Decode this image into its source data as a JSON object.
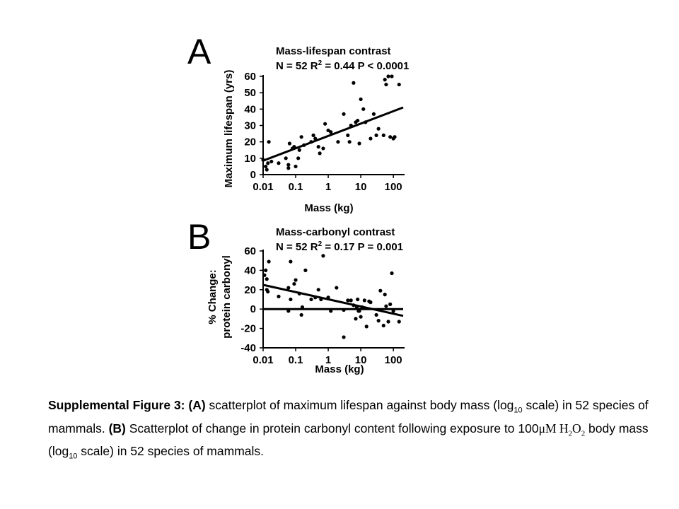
{
  "panels": {
    "a": {
      "letter": "A",
      "title_line1": "Mass-lifespan contrast",
      "title_n": "N = 52 R",
      "title_exp": "2",
      "title_rest": " =  0.44 P < 0.0001"
    },
    "b": {
      "letter": "B",
      "title_line1": "Mass-carbonyl contrast",
      "title_n": "N = 52 R",
      "title_exp": "2",
      "title_rest": " =  0.17 P = 0.001"
    }
  },
  "caption": {
    "lead": "Supplemental Figure 3: (A)",
    "text1": " scatterplot of maximum lifespan against body mass (log",
    "sub1": "10",
    "text2": " scale) in 52 species of mammals.  ",
    "b_label": "(B)",
    "text3": " Scatterplot of change in protein carbonyl content following exposure to 100",
    "unit": "μM H",
    "h2": "2",
    "o": "O",
    "o2": "2",
    "text4": " body mass (log",
    "sub2": "10",
    "text5": " scale) in 52 species of mammals."
  },
  "chart_data": [
    {
      "type": "scatter",
      "x_scale": "log10",
      "xlabel": "Mass (kg)",
      "ylabel": "Maximum lifespan (yrs)",
      "xlim": [
        0.01,
        200
      ],
      "ylim": [
        0,
        60
      ],
      "x_ticks": [
        0.01,
        0.1,
        1,
        10,
        100
      ],
      "x_tick_labels": [
        "0.01",
        "0.1",
        "1",
        "10",
        "100"
      ],
      "y_ticks": [
        0,
        10,
        20,
        30,
        40,
        50,
        60
      ],
      "y_tick_labels": [
        "0",
        "10",
        "20",
        "30",
        "40",
        "50",
        "60"
      ],
      "grid": false,
      "trendline": {
        "x": [
          0.01,
          200
        ],
        "y": [
          8.5,
          41
        ]
      },
      "points": [
        {
          "x": 0.01,
          "y": 9
        },
        {
          "x": 0.012,
          "y": 5
        },
        {
          "x": 0.013,
          "y": 3
        },
        {
          "x": 0.014,
          "y": 7
        },
        {
          "x": 0.015,
          "y": 20
        },
        {
          "x": 0.018,
          "y": 8
        },
        {
          "x": 0.03,
          "y": 7
        },
        {
          "x": 0.05,
          "y": 10
        },
        {
          "x": 0.06,
          "y": 6
        },
        {
          "x": 0.06,
          "y": 4
        },
        {
          "x": 0.065,
          "y": 19
        },
        {
          "x": 0.08,
          "y": 16
        },
        {
          "x": 0.09,
          "y": 17
        },
        {
          "x": 0.1,
          "y": 5
        },
        {
          "x": 0.12,
          "y": 10
        },
        {
          "x": 0.13,
          "y": 15
        },
        {
          "x": 0.15,
          "y": 23
        },
        {
          "x": 0.18,
          "y": 18
        },
        {
          "x": 0.3,
          "y": 20
        },
        {
          "x": 0.35,
          "y": 24
        },
        {
          "x": 0.4,
          "y": 22
        },
        {
          "x": 0.5,
          "y": 17
        },
        {
          "x": 0.55,
          "y": 13
        },
        {
          "x": 0.7,
          "y": 16
        },
        {
          "x": 0.8,
          "y": 31
        },
        {
          "x": 1.0,
          "y": 27
        },
        {
          "x": 1.2,
          "y": 26
        },
        {
          "x": 2.0,
          "y": 20
        },
        {
          "x": 3.0,
          "y": 37
        },
        {
          "x": 4.0,
          "y": 24
        },
        {
          "x": 4.5,
          "y": 20
        },
        {
          "x": 5.0,
          "y": 30
        },
        {
          "x": 6.0,
          "y": 56
        },
        {
          "x": 7.0,
          "y": 32
        },
        {
          "x": 8.0,
          "y": 33
        },
        {
          "x": 9.0,
          "y": 19
        },
        {
          "x": 10,
          "y": 46
        },
        {
          "x": 12,
          "y": 40
        },
        {
          "x": 14,
          "y": 32
        },
        {
          "x": 20,
          "y": 22
        },
        {
          "x": 25,
          "y": 37
        },
        {
          "x": 30,
          "y": 24
        },
        {
          "x": 35,
          "y": 28
        },
        {
          "x": 50,
          "y": 24
        },
        {
          "x": 55,
          "y": 58
        },
        {
          "x": 60,
          "y": 55
        },
        {
          "x": 70,
          "y": 60
        },
        {
          "x": 80,
          "y": 23
        },
        {
          "x": 90,
          "y": 60
        },
        {
          "x": 100,
          "y": 22
        },
        {
          "x": 110,
          "y": 23
        },
        {
          "x": 150,
          "y": 55
        }
      ]
    },
    {
      "type": "scatter",
      "x_scale": "log10",
      "xlabel": "Mass (kg)",
      "ylabel_line1": "% Change:",
      "ylabel_line2": "protein carbonyl",
      "xlim": [
        0.01,
        200
      ],
      "ylim": [
        -40,
        60
      ],
      "x_ticks": [
        0.01,
        0.1,
        1,
        10,
        100
      ],
      "x_tick_labels": [
        "0.01",
        "0.1",
        "1",
        "10",
        "100"
      ],
      "y_ticks": [
        -40,
        -20,
        0,
        20,
        40,
        60
      ],
      "y_tick_labels": [
        "-40",
        "-20",
        "0",
        "20",
        "40",
        "60"
      ],
      "grid": false,
      "zero_line": true,
      "trendline": {
        "x": [
          0.01,
          200
        ],
        "y": [
          25,
          -7
        ]
      },
      "points": [
        {
          "x": 0.011,
          "y": 35
        },
        {
          "x": 0.012,
          "y": 40
        },
        {
          "x": 0.013,
          "y": 31
        },
        {
          "x": 0.013,
          "y": 20
        },
        {
          "x": 0.014,
          "y": 18
        },
        {
          "x": 0.015,
          "y": 49
        },
        {
          "x": 0.03,
          "y": 13
        },
        {
          "x": 0.06,
          "y": 22
        },
        {
          "x": 0.06,
          "y": -2
        },
        {
          "x": 0.07,
          "y": 49
        },
        {
          "x": 0.07,
          "y": 10
        },
        {
          "x": 0.09,
          "y": 26
        },
        {
          "x": 0.1,
          "y": 30
        },
        {
          "x": 0.13,
          "y": 16
        },
        {
          "x": 0.15,
          "y": -6
        },
        {
          "x": 0.16,
          "y": 2
        },
        {
          "x": 0.2,
          "y": 40
        },
        {
          "x": 0.3,
          "y": 10
        },
        {
          "x": 0.4,
          "y": 12
        },
        {
          "x": 0.5,
          "y": 20
        },
        {
          "x": 0.6,
          "y": 10
        },
        {
          "x": 0.7,
          "y": 55
        },
        {
          "x": 1.0,
          "y": 12
        },
        {
          "x": 1.2,
          "y": -2
        },
        {
          "x": 1.8,
          "y": 22
        },
        {
          "x": 3.0,
          "y": -29
        },
        {
          "x": 3.0,
          "y": -1
        },
        {
          "x": 4.0,
          "y": 9
        },
        {
          "x": 5.0,
          "y": 9
        },
        {
          "x": 6.0,
          "y": 4
        },
        {
          "x": 7.0,
          "y": -10
        },
        {
          "x": 7.5,
          "y": 2
        },
        {
          "x": 8.0,
          "y": 10
        },
        {
          "x": 8.5,
          "y": -2
        },
        {
          "x": 9.0,
          "y": -2
        },
        {
          "x": 10,
          "y": -8
        },
        {
          "x": 11,
          "y": 2
        },
        {
          "x": 13,
          "y": 9
        },
        {
          "x": 15,
          "y": -18
        },
        {
          "x": 18,
          "y": 8
        },
        {
          "x": 20,
          "y": 7
        },
        {
          "x": 30,
          "y": -6
        },
        {
          "x": 35,
          "y": -12
        },
        {
          "x": 40,
          "y": 19
        },
        {
          "x": 50,
          "y": -17
        },
        {
          "x": 55,
          "y": 15
        },
        {
          "x": 60,
          "y": 3
        },
        {
          "x": 70,
          "y": -13
        },
        {
          "x": 80,
          "y": 5
        },
        {
          "x": 90,
          "y": 37
        },
        {
          "x": 100,
          "y": -2
        },
        {
          "x": 150,
          "y": -13
        }
      ]
    }
  ]
}
